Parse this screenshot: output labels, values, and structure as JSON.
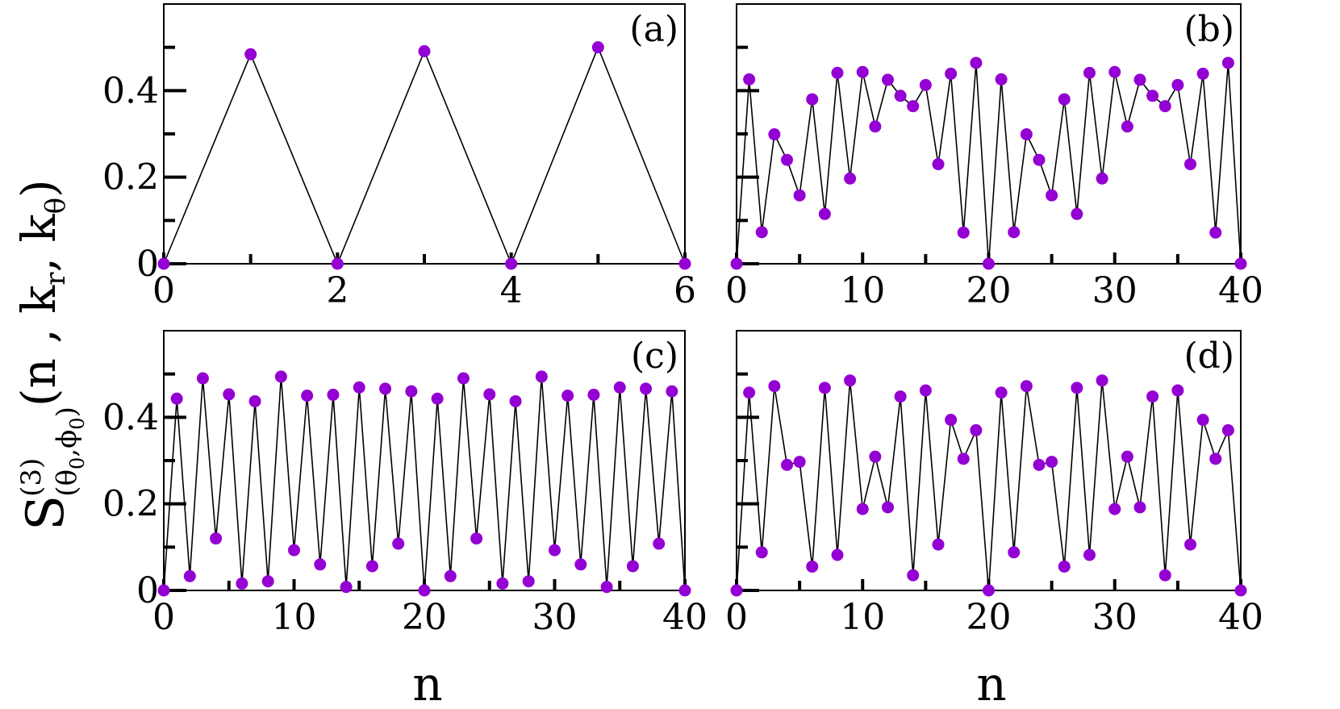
{
  "figure": {
    "ylabel": {
      "base": "S",
      "sup": "(3)",
      "sub": "(θ0,ϕ0)",
      "sub_parts": [
        "(θ",
        "0",
        ",ϕ",
        "0",
        ")"
      ],
      "args": [
        "(n , k",
        "r",
        ", k",
        "θ",
        ")"
      ]
    },
    "xlabel": "n",
    "marker_color": "#9400d3",
    "line_color": "#000000"
  },
  "chart_data": [
    {
      "type": "line",
      "panel": "(a)",
      "xlim": [
        0,
        6
      ],
      "ylim": [
        0,
        0.6
      ],
      "xticks": [
        0,
        2,
        4,
        6
      ],
      "xtick_labels": [
        "0",
        "2",
        "4",
        "6"
      ],
      "yticks": [
        0,
        0.2,
        0.4
      ],
      "ytick_labels": [
        "0",
        "0.2",
        "0.4"
      ],
      "x": [
        0,
        1,
        2,
        3,
        4,
        5,
        6
      ],
      "y": [
        0,
        0.484,
        0,
        0.491,
        0,
        0.5,
        0
      ]
    },
    {
      "type": "line",
      "panel": "(b)",
      "xlim": [
        0,
        40
      ],
      "ylim": [
        0,
        0.6
      ],
      "xticks": [
        0,
        10,
        20,
        30,
        40
      ],
      "xtick_labels": [
        "0",
        "10",
        "20",
        "30",
        "40"
      ],
      "yticks": [
        0,
        0.2,
        0.4
      ],
      "ytick_labels": [],
      "x": [
        0,
        1,
        2,
        3,
        4,
        5,
        6,
        7,
        8,
        9,
        10,
        11,
        12,
        13,
        14,
        15,
        16,
        17,
        18,
        19,
        20,
        21,
        22,
        23,
        24,
        25,
        26,
        27,
        28,
        29,
        30,
        31,
        32,
        33,
        34,
        35,
        36,
        37,
        38,
        39,
        40
      ],
      "y": [
        0,
        0.426,
        0.073,
        0.299,
        0.24,
        0.158,
        0.38,
        0.115,
        0.441,
        0.197,
        0.443,
        0.317,
        0.425,
        0.388,
        0.364,
        0.413,
        0.23,
        0.439,
        0.072,
        0.464,
        0,
        0.426,
        0.073,
        0.299,
        0.24,
        0.158,
        0.38,
        0.115,
        0.441,
        0.197,
        0.443,
        0.317,
        0.425,
        0.388,
        0.364,
        0.413,
        0.23,
        0.439,
        0.072,
        0.464,
        0
      ]
    },
    {
      "type": "line",
      "panel": "(c)",
      "xlim": [
        0,
        40
      ],
      "ylim": [
        0,
        0.6
      ],
      "xticks": [
        0,
        10,
        20,
        30,
        40
      ],
      "xtick_labels": [
        "0",
        "10",
        "20",
        "30",
        "40"
      ],
      "yticks": [
        0,
        0.2,
        0.4
      ],
      "ytick_labels": [
        "0",
        "0.2",
        "0.4"
      ],
      "x": [
        0,
        1,
        2,
        3,
        4,
        5,
        6,
        7,
        8,
        9,
        10,
        11,
        12,
        13,
        14,
        15,
        16,
        17,
        18,
        19,
        20,
        21,
        22,
        23,
        24,
        25,
        26,
        27,
        28,
        29,
        30,
        31,
        32,
        33,
        34,
        35,
        36,
        37,
        38,
        39,
        40
      ],
      "y": [
        0,
        0.443,
        0.033,
        0.49,
        0.12,
        0.453,
        0.016,
        0.437,
        0.021,
        0.494,
        0.093,
        0.45,
        0.06,
        0.452,
        0.008,
        0.469,
        0.056,
        0.466,
        0.108,
        0.46,
        0,
        0.443,
        0.033,
        0.49,
        0.12,
        0.453,
        0.016,
        0.437,
        0.021,
        0.494,
        0.093,
        0.45,
        0.06,
        0.452,
        0.008,
        0.469,
        0.056,
        0.466,
        0.108,
        0.46,
        0
      ]
    },
    {
      "type": "line",
      "panel": "(d)",
      "xlim": [
        0,
        40
      ],
      "ylim": [
        0,
        0.6
      ],
      "xticks": [
        0,
        10,
        20,
        30,
        40
      ],
      "xtick_labels": [
        "0",
        "10",
        "20",
        "30",
        "40"
      ],
      "yticks": [
        0,
        0.2,
        0.4
      ],
      "ytick_labels": [],
      "x": [
        0,
        1,
        2,
        3,
        4,
        5,
        6,
        7,
        8,
        9,
        10,
        11,
        12,
        13,
        14,
        15,
        16,
        17,
        18,
        19,
        20,
        21,
        22,
        23,
        24,
        25,
        26,
        27,
        28,
        29,
        30,
        31,
        32,
        33,
        34,
        35,
        36,
        37,
        38,
        39,
        40
      ],
      "y": [
        0,
        0.457,
        0.088,
        0.472,
        0.29,
        0.297,
        0.055,
        0.468,
        0.082,
        0.485,
        0.188,
        0.309,
        0.192,
        0.448,
        0.035,
        0.462,
        0.106,
        0.394,
        0.304,
        0.37,
        0,
        0.457,
        0.088,
        0.472,
        0.29,
        0.297,
        0.055,
        0.468,
        0.082,
        0.485,
        0.188,
        0.309,
        0.192,
        0.448,
        0.035,
        0.462,
        0.106,
        0.394,
        0.304,
        0.37,
        0
      ]
    }
  ]
}
